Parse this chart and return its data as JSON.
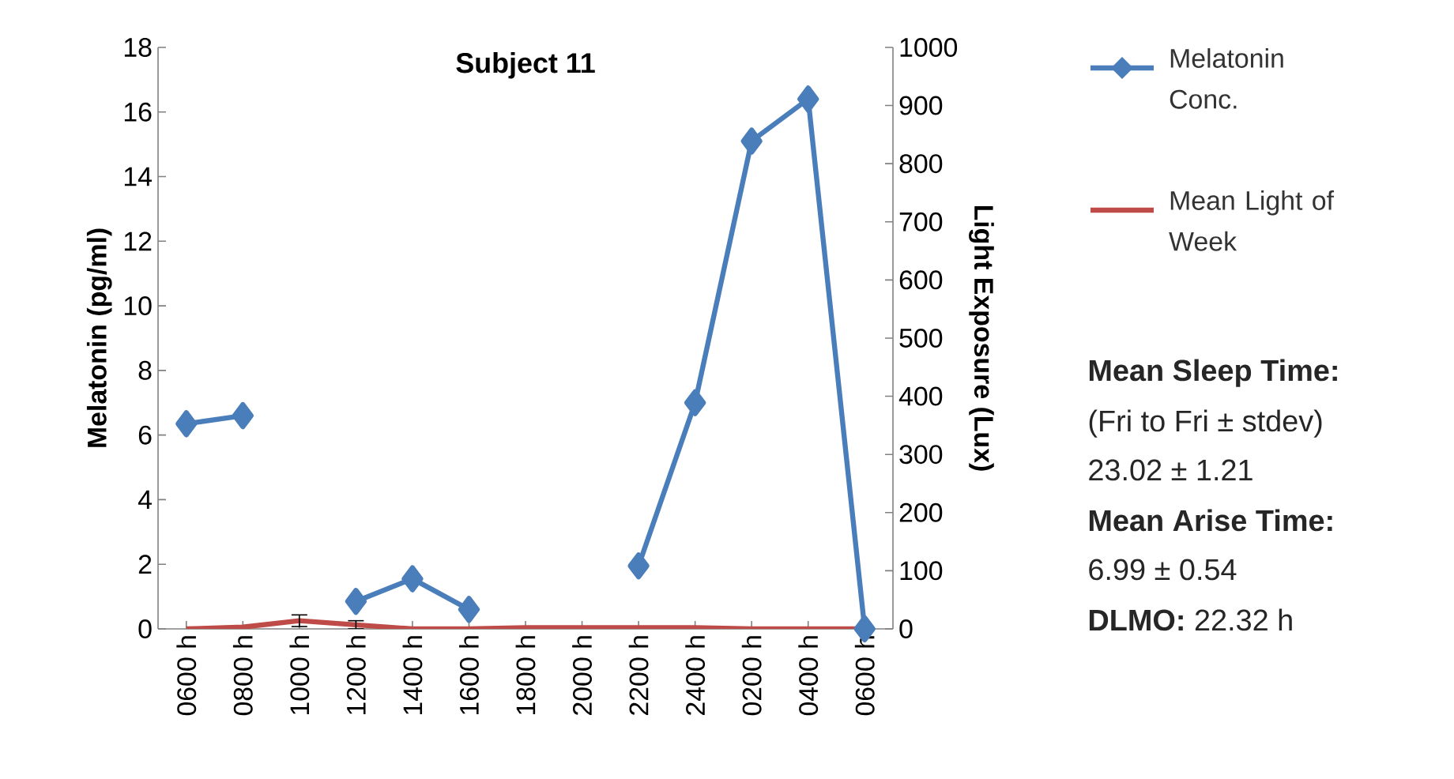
{
  "chart_data": {
    "type": "line",
    "title": "Subject 11",
    "ylabel": "Melatonin (pg/ml)",
    "y2label": "Light Exposure (Lux)",
    "categories": [
      "0600 h",
      "0800 h",
      "1000 h",
      "1200 h",
      "1400 h",
      "1600 h",
      "1800 h",
      "2000 h",
      "2200 h",
      "2400 h",
      "0200 h",
      "0400 h",
      "0600 h"
    ],
    "series": [
      {
        "name": "Melatonin Conc.",
        "color": "#4a7ebb",
        "marker": "diamond",
        "values": [
          6.35,
          6.6,
          null,
          0.85,
          1.55,
          0.6,
          null,
          null,
          1.95,
          7.0,
          15.1,
          16.4,
          0.0
        ]
      },
      {
        "name": "Mean Light of Week",
        "color": "#be4b48",
        "marker": "none",
        "axis": "y2",
        "values": [
          0,
          3,
          14,
          7,
          0,
          0,
          2,
          2,
          2,
          2,
          0,
          0,
          0
        ],
        "errors": [
          null,
          null,
          10,
          7,
          null,
          null,
          null,
          null,
          null,
          null,
          null,
          null,
          null
        ]
      }
    ],
    "ylim": [
      0,
      18
    ],
    "yticks": [
      0,
      2,
      4,
      6,
      8,
      10,
      12,
      14,
      16,
      18
    ],
    "y2lim": [
      0,
      1000
    ],
    "y2ticks": [
      0,
      100,
      200,
      300,
      400,
      500,
      600,
      700,
      800,
      900,
      1000
    ],
    "legend": "top right",
    "grid": false,
    "annotations": [
      "**Mean Sleep Time:**",
      "(Fri to Fri ± stdev)",
      "23.02 ± 1.21",
      "**Mean Arise Time:**",
      "6.99 ± 0.54",
      "**DLMO:** 22.32 h"
    ]
  }
}
